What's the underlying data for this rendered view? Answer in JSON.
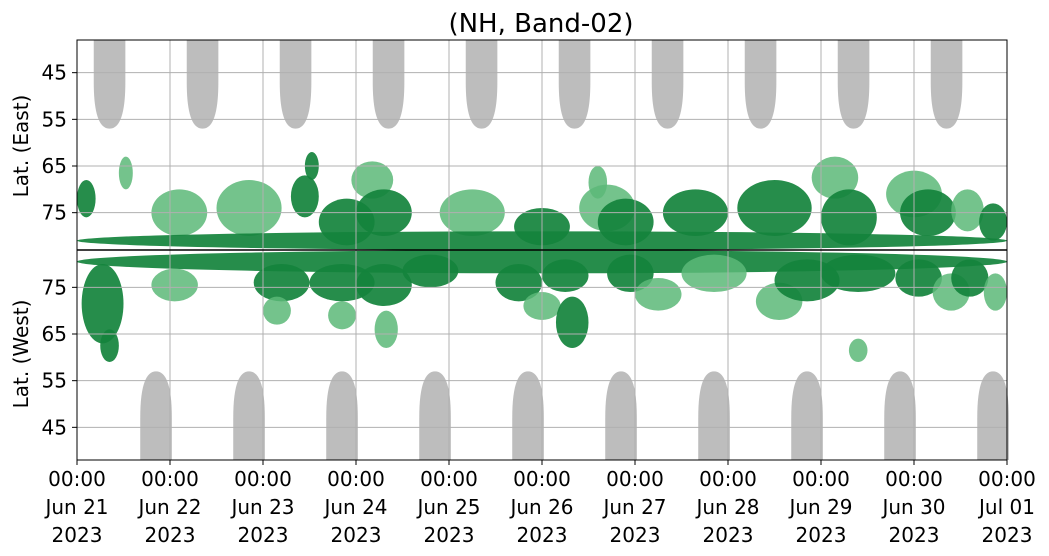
{
  "chart_data": {
    "type": "heatmap",
    "title": "(NH, Band-02)",
    "ylabel_top": "Lat. (East)",
    "ylabel_bottom": "Lat. (West)",
    "x_ticks": [
      {
        "time": "00:00",
        "date": "Jun 21",
        "year": "2023"
      },
      {
        "time": "00:00",
        "date": "Jun 22",
        "year": "2023"
      },
      {
        "time": "00:00",
        "date": "Jun 23",
        "year": "2023"
      },
      {
        "time": "00:00",
        "date": "Jun 24",
        "year": "2023"
      },
      {
        "time": "00:00",
        "date": "Jun 25",
        "year": "2023"
      },
      {
        "time": "00:00",
        "date": "Jun 26",
        "year": "2023"
      },
      {
        "time": "00:00",
        "date": "Jun 27",
        "year": "2023"
      },
      {
        "time": "00:00",
        "date": "Jun 28",
        "year": "2023"
      },
      {
        "time": "00:00",
        "date": "Jun 29",
        "year": "2023"
      },
      {
        "time": "00:00",
        "date": "Jun 30",
        "year": "2023"
      },
      {
        "time": "00:00",
        "date": "Jul 01",
        "year": "2023"
      }
    ],
    "xlim": [
      "2023-06-21 00:00",
      "2023-07-01 00:00"
    ],
    "y_ticks_top": [
      "45",
      "55",
      "65",
      "75"
    ],
    "y_ticks_bottom": [
      "75",
      "65",
      "55",
      "45"
    ],
    "ylim_top": [
      38,
      83
    ],
    "ylim_bottom": [
      83,
      38
    ],
    "grid": true,
    "colors": {
      "activity_strong": "#13833c",
      "activity_weak": "#5cb878",
      "daylight": "#bdbdbd",
      "grid": "#b0b0b0",
      "divider": "#000000"
    },
    "daylight_regions": {
      "top_peaks_day": [
        0.35,
        1.35,
        2.35,
        3.35,
        4.35,
        5.35,
        6.35,
        7.35,
        8.35,
        9.35
      ],
      "bottom_peaks_day": [
        0.85,
        1.85,
        2.85,
        3.85,
        4.85,
        5.85,
        6.85,
        7.85,
        8.85,
        9.85
      ],
      "reach_lat": 57
    },
    "activity_blobs": [
      {
        "hemi": "top",
        "t0": 0.0,
        "t1": 0.2,
        "lat0": 68,
        "lat1": 76,
        "level": "strong"
      },
      {
        "hemi": "top",
        "t0": 0.45,
        "t1": 0.6,
        "lat0": 63,
        "lat1": 70,
        "level": "weak"
      },
      {
        "hemi": "top",
        "t0": 0.8,
        "t1": 1.4,
        "lat0": 70,
        "lat1": 80,
        "level": "weak"
      },
      {
        "hemi": "top",
        "t0": 1.5,
        "t1": 2.2,
        "lat0": 68,
        "lat1": 80,
        "level": "weak"
      },
      {
        "hemi": "top",
        "t0": 2.3,
        "t1": 2.6,
        "lat0": 67,
        "lat1": 76,
        "level": "strong"
      },
      {
        "hemi": "top",
        "t0": 2.45,
        "t1": 2.6,
        "lat0": 62,
        "lat1": 68,
        "level": "strong"
      },
      {
        "hemi": "top",
        "t0": 2.6,
        "t1": 3.2,
        "lat0": 72,
        "lat1": 82,
        "level": "strong"
      },
      {
        "hemi": "top",
        "t0": 2.95,
        "t1": 3.4,
        "lat0": 64,
        "lat1": 72,
        "level": "weak"
      },
      {
        "hemi": "top",
        "t0": 3.0,
        "t1": 3.6,
        "lat0": 70,
        "lat1": 80,
        "level": "strong"
      },
      {
        "hemi": "top",
        "t0": 3.9,
        "t1": 4.6,
        "lat0": 70,
        "lat1": 80,
        "level": "weak"
      },
      {
        "hemi": "top",
        "t0": 4.7,
        "t1": 5.3,
        "lat0": 74,
        "lat1": 82,
        "level": "strong"
      },
      {
        "hemi": "top",
        "t0": 5.4,
        "t1": 6.0,
        "lat0": 69,
        "lat1": 79,
        "level": "weak"
      },
      {
        "hemi": "top",
        "t0": 5.5,
        "t1": 5.7,
        "lat0": 65,
        "lat1": 72,
        "level": "weak"
      },
      {
        "hemi": "top",
        "t0": 5.6,
        "t1": 6.2,
        "lat0": 72,
        "lat1": 82,
        "level": "strong"
      },
      {
        "hemi": "top",
        "t0": 6.3,
        "t1": 7.0,
        "lat0": 70,
        "lat1": 80,
        "level": "strong"
      },
      {
        "hemi": "top",
        "t0": 7.1,
        "t1": 7.9,
        "lat0": 68,
        "lat1": 80,
        "level": "strong"
      },
      {
        "hemi": "top",
        "t0": 7.9,
        "t1": 8.4,
        "lat0": 63,
        "lat1": 72,
        "level": "weak"
      },
      {
        "hemi": "top",
        "t0": 8.0,
        "t1": 8.6,
        "lat0": 70,
        "lat1": 82,
        "level": "strong"
      },
      {
        "hemi": "top",
        "t0": 8.7,
        "t1": 9.3,
        "lat0": 66,
        "lat1": 76,
        "level": "weak"
      },
      {
        "hemi": "top",
        "t0": 8.85,
        "t1": 9.45,
        "lat0": 70,
        "lat1": 80,
        "level": "strong"
      },
      {
        "hemi": "top",
        "t0": 9.4,
        "t1": 9.75,
        "lat0": 70,
        "lat1": 79,
        "level": "weak"
      },
      {
        "hemi": "top",
        "t0": 9.7,
        "t1": 10.0,
        "lat0": 73,
        "lat1": 81,
        "level": "strong"
      },
      {
        "hemi": "top",
        "t0": 0.0,
        "t1": 10.0,
        "lat0": 79,
        "lat1": 83,
        "level": "strong"
      },
      {
        "hemi": "bottom",
        "t0": 0.0,
        "t1": 10.0,
        "lat0": 78,
        "lat1": 83,
        "level": "strong"
      },
      {
        "hemi": "bottom",
        "t0": 0.05,
        "t1": 0.5,
        "lat0": 63,
        "lat1": 80,
        "level": "strong"
      },
      {
        "hemi": "bottom",
        "t0": 0.25,
        "t1": 0.45,
        "lat0": 59,
        "lat1": 66,
        "level": "strong"
      },
      {
        "hemi": "bottom",
        "t0": 0.8,
        "t1": 1.3,
        "lat0": 72,
        "lat1": 79,
        "level": "weak"
      },
      {
        "hemi": "bottom",
        "t0": 1.9,
        "t1": 2.5,
        "lat0": 72,
        "lat1": 80,
        "level": "strong"
      },
      {
        "hemi": "bottom",
        "t0": 2.0,
        "t1": 2.3,
        "lat0": 67,
        "lat1": 73,
        "level": "weak"
      },
      {
        "hemi": "bottom",
        "t0": 2.5,
        "t1": 3.2,
        "lat0": 72,
        "lat1": 80,
        "level": "strong"
      },
      {
        "hemi": "bottom",
        "t0": 2.7,
        "t1": 3.0,
        "lat0": 66,
        "lat1": 72,
        "level": "weak"
      },
      {
        "hemi": "bottom",
        "t0": 3.0,
        "t1": 3.6,
        "lat0": 71,
        "lat1": 80,
        "level": "strong"
      },
      {
        "hemi": "bottom",
        "t0": 3.2,
        "t1": 3.45,
        "lat0": 62,
        "lat1": 70,
        "level": "weak"
      },
      {
        "hemi": "bottom",
        "t0": 3.5,
        "t1": 4.1,
        "lat0": 75,
        "lat1": 82,
        "level": "strong"
      },
      {
        "hemi": "bottom",
        "t0": 4.5,
        "t1": 5.0,
        "lat0": 72,
        "lat1": 80,
        "level": "strong"
      },
      {
        "hemi": "bottom",
        "t0": 4.8,
        "t1": 5.2,
        "lat0": 68,
        "lat1": 74,
        "level": "weak"
      },
      {
        "hemi": "bottom",
        "t0": 5.0,
        "t1": 5.5,
        "lat0": 74,
        "lat1": 81,
        "level": "strong"
      },
      {
        "hemi": "bottom",
        "t0": 5.15,
        "t1": 5.5,
        "lat0": 62,
        "lat1": 73,
        "level": "strong"
      },
      {
        "hemi": "bottom",
        "t0": 5.7,
        "t1": 6.2,
        "lat0": 74,
        "lat1": 82,
        "level": "strong"
      },
      {
        "hemi": "bottom",
        "t0": 6.0,
        "t1": 6.5,
        "lat0": 70,
        "lat1": 77,
        "level": "weak"
      },
      {
        "hemi": "bottom",
        "t0": 6.5,
        "t1": 7.2,
        "lat0": 74,
        "lat1": 82,
        "level": "weak"
      },
      {
        "hemi": "bottom",
        "t0": 7.3,
        "t1": 7.8,
        "lat0": 68,
        "lat1": 76,
        "level": "weak"
      },
      {
        "hemi": "bottom",
        "t0": 7.5,
        "t1": 8.2,
        "lat0": 72,
        "lat1": 81,
        "level": "strong"
      },
      {
        "hemi": "bottom",
        "t0": 8.3,
        "t1": 8.5,
        "lat0": 59,
        "lat1": 64,
        "level": "weak"
      },
      {
        "hemi": "bottom",
        "t0": 8.0,
        "t1": 8.8,
        "lat0": 74,
        "lat1": 82,
        "level": "strong"
      },
      {
        "hemi": "bottom",
        "t0": 8.8,
        "t1": 9.3,
        "lat0": 73,
        "lat1": 81,
        "level": "strong"
      },
      {
        "hemi": "bottom",
        "t0": 9.2,
        "t1": 9.6,
        "lat0": 70,
        "lat1": 78,
        "level": "weak"
      },
      {
        "hemi": "bottom",
        "t0": 9.4,
        "t1": 9.8,
        "lat0": 73,
        "lat1": 81,
        "level": "strong"
      },
      {
        "hemi": "bottom",
        "t0": 9.75,
        "t1": 10.0,
        "lat0": 70,
        "lat1": 78,
        "level": "weak"
      }
    ]
  }
}
